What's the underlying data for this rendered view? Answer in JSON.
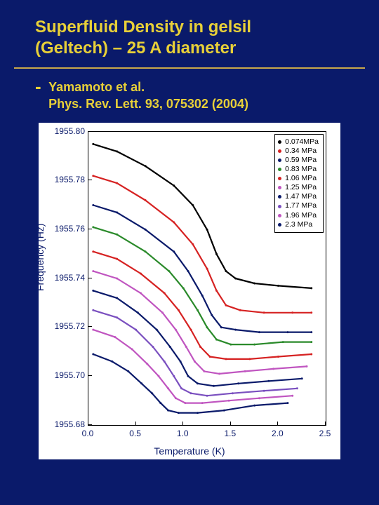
{
  "slide": {
    "background": "#0a1a6a",
    "title_line1": "Superfluid Density in gelsil",
    "title_line2": "(Geltech) – 25 A diameter",
    "title_color": "#e8d038",
    "title_fontsize": 24,
    "rule_color": "#c9a84a",
    "sub_dash": "-",
    "sub_line1": "Yamamoto et al.",
    "sub_line2": "Phys. Rev. Lett. 93, 075302 (2004)",
    "sub_fontsize": 18
  },
  "chart": {
    "type": "line",
    "background_color": "#ffffff",
    "axis_color": "#000000",
    "text_color": "#0a1a6a",
    "xlabel": "Temperature (K)",
    "ylabel": "Frequency (Hz)",
    "label_fontsize": 14,
    "tick_fontsize": 12,
    "xlim": [
      0.0,
      2.5
    ],
    "ylim": [
      1955.68,
      1955.8
    ],
    "xticks": [
      0.0,
      0.5,
      1.0,
      1.5,
      2.0,
      2.5
    ],
    "yticks": [
      1955.68,
      1955.7,
      1955.72,
      1955.74,
      1955.76,
      1955.78,
      1955.8
    ],
    "xtick_labels": [
      "0.0",
      "0.5",
      "1.0",
      "1.5",
      "2.0",
      "2.5"
    ],
    "ytick_labels": [
      "1955.68",
      "1955.70",
      "1955.72",
      "1955.74",
      "1955.76",
      "1955.78",
      "1955.80"
    ],
    "line_width": 2.2,
    "marker_size": 3,
    "legend": {
      "position": "top-right",
      "border_color": "#000000",
      "bg_color": "#ffffff",
      "fontsize": 10.5,
      "items": [
        {
          "label": "0.074MPa",
          "color": "#000000"
        },
        {
          "label": "0.34 MPa",
          "color": "#d62222"
        },
        {
          "label": "0.59 MPa",
          "color": "#0a1a6a"
        },
        {
          "label": "0.83 MPa",
          "color": "#2a8a2a"
        },
        {
          "label": "1.06 MPa",
          "color": "#d62222"
        },
        {
          "label": "1.25 MPa",
          "color": "#c055c0"
        },
        {
          "label": "1.47 MPa",
          "color": "#0a1a6a"
        },
        {
          "label": "1.77 MPa",
          "color": "#7a4fbf"
        },
        {
          "label": "1.96 MPa",
          "color": "#c055c0"
        },
        {
          "label": "2.3 MPa",
          "color": "#0a1a6a"
        }
      ]
    },
    "series": [
      {
        "name": "0.074MPa",
        "color": "#000000",
        "points": [
          [
            0.05,
            1955.795
          ],
          [
            0.3,
            1955.792
          ],
          [
            0.6,
            1955.786
          ],
          [
            0.9,
            1955.778
          ],
          [
            1.1,
            1955.77
          ],
          [
            1.25,
            1955.76
          ],
          [
            1.35,
            1955.75
          ],
          [
            1.45,
            1955.743
          ],
          [
            1.55,
            1955.74
          ],
          [
            1.75,
            1955.738
          ],
          [
            2.0,
            1955.737
          ],
          [
            2.35,
            1955.736
          ]
        ]
      },
      {
        "name": "0.34 MPa",
        "color": "#d62222",
        "points": [
          [
            0.05,
            1955.782
          ],
          [
            0.3,
            1955.779
          ],
          [
            0.6,
            1955.772
          ],
          [
            0.9,
            1955.763
          ],
          [
            1.1,
            1955.754
          ],
          [
            1.25,
            1955.744
          ],
          [
            1.35,
            1955.735
          ],
          [
            1.45,
            1955.729
          ],
          [
            1.6,
            1955.727
          ],
          [
            1.85,
            1955.726
          ],
          [
            2.15,
            1955.726
          ],
          [
            2.35,
            1955.726
          ]
        ]
      },
      {
        "name": "0.59 MPa",
        "color": "#0a1a6a",
        "points": [
          [
            0.05,
            1955.77
          ],
          [
            0.3,
            1955.767
          ],
          [
            0.6,
            1955.76
          ],
          [
            0.9,
            1955.751
          ],
          [
            1.05,
            1955.743
          ],
          [
            1.2,
            1955.733
          ],
          [
            1.3,
            1955.725
          ],
          [
            1.4,
            1955.72
          ],
          [
            1.55,
            1955.719
          ],
          [
            1.8,
            1955.718
          ],
          [
            2.1,
            1955.718
          ],
          [
            2.35,
            1955.718
          ]
        ]
      },
      {
        "name": "0.83 MPa",
        "color": "#2a8a2a",
        "points": [
          [
            0.05,
            1955.761
          ],
          [
            0.3,
            1955.758
          ],
          [
            0.6,
            1955.751
          ],
          [
            0.85,
            1955.743
          ],
          [
            1.0,
            1955.736
          ],
          [
            1.15,
            1955.727
          ],
          [
            1.25,
            1955.72
          ],
          [
            1.35,
            1955.715
          ],
          [
            1.5,
            1955.713
          ],
          [
            1.75,
            1955.713
          ],
          [
            2.05,
            1955.714
          ],
          [
            2.35,
            1955.714
          ]
        ]
      },
      {
        "name": "1.06 MPa",
        "color": "#d62222",
        "points": [
          [
            0.05,
            1955.751
          ],
          [
            0.3,
            1955.748
          ],
          [
            0.55,
            1955.742
          ],
          [
            0.8,
            1955.734
          ],
          [
            0.95,
            1955.727
          ],
          [
            1.08,
            1955.719
          ],
          [
            1.18,
            1955.712
          ],
          [
            1.28,
            1955.708
          ],
          [
            1.45,
            1955.707
          ],
          [
            1.7,
            1955.707
          ],
          [
            2.0,
            1955.708
          ],
          [
            2.35,
            1955.709
          ]
        ]
      },
      {
        "name": "1.25 MPa",
        "color": "#c055c0",
        "points": [
          [
            0.05,
            1955.743
          ],
          [
            0.3,
            1955.74
          ],
          [
            0.55,
            1955.734
          ],
          [
            0.78,
            1955.726
          ],
          [
            0.92,
            1955.719
          ],
          [
            1.03,
            1955.712
          ],
          [
            1.12,
            1955.706
          ],
          [
            1.22,
            1955.702
          ],
          [
            1.38,
            1955.701
          ],
          [
            1.65,
            1955.702
          ],
          [
            1.95,
            1955.703
          ],
          [
            2.3,
            1955.704
          ]
        ]
      },
      {
        "name": "1.47 MPa",
        "color": "#0a1a6a",
        "points": [
          [
            0.05,
            1955.735
          ],
          [
            0.3,
            1955.732
          ],
          [
            0.52,
            1955.726
          ],
          [
            0.72,
            1955.719
          ],
          [
            0.86,
            1955.712
          ],
          [
            0.97,
            1955.706
          ],
          [
            1.05,
            1955.7
          ],
          [
            1.15,
            1955.697
          ],
          [
            1.32,
            1955.696
          ],
          [
            1.58,
            1955.697
          ],
          [
            1.9,
            1955.698
          ],
          [
            2.25,
            1955.699
          ]
        ]
      },
      {
        "name": "1.77 MPa",
        "color": "#7a4fbf",
        "points": [
          [
            0.05,
            1955.727
          ],
          [
            0.3,
            1955.724
          ],
          [
            0.5,
            1955.719
          ],
          [
            0.68,
            1955.712
          ],
          [
            0.8,
            1955.706
          ],
          [
            0.9,
            1955.7
          ],
          [
            0.98,
            1955.695
          ],
          [
            1.08,
            1955.693
          ],
          [
            1.25,
            1955.692
          ],
          [
            1.52,
            1955.693
          ],
          [
            1.85,
            1955.694
          ],
          [
            2.2,
            1955.695
          ]
        ]
      },
      {
        "name": "1.96 MPa",
        "color": "#c055c0",
        "points": [
          [
            0.05,
            1955.719
          ],
          [
            0.28,
            1955.716
          ],
          [
            0.46,
            1955.711
          ],
          [
            0.62,
            1955.705
          ],
          [
            0.74,
            1955.7
          ],
          [
            0.84,
            1955.695
          ],
          [
            0.92,
            1955.691
          ],
          [
            1.02,
            1955.689
          ],
          [
            1.2,
            1955.689
          ],
          [
            1.48,
            1955.69
          ],
          [
            1.8,
            1955.691
          ],
          [
            2.15,
            1955.692
          ]
        ]
      },
      {
        "name": "2.3 MPa",
        "color": "#0a1a6a",
        "points": [
          [
            0.05,
            1955.709
          ],
          [
            0.25,
            1955.706
          ],
          [
            0.42,
            1955.702
          ],
          [
            0.56,
            1955.697
          ],
          [
            0.67,
            1955.693
          ],
          [
            0.76,
            1955.689
          ],
          [
            0.84,
            1955.686
          ],
          [
            0.95,
            1955.685
          ],
          [
            1.15,
            1955.685
          ],
          [
            1.43,
            1955.686
          ],
          [
            1.75,
            1955.688
          ],
          [
            2.1,
            1955.689
          ]
        ]
      }
    ]
  }
}
